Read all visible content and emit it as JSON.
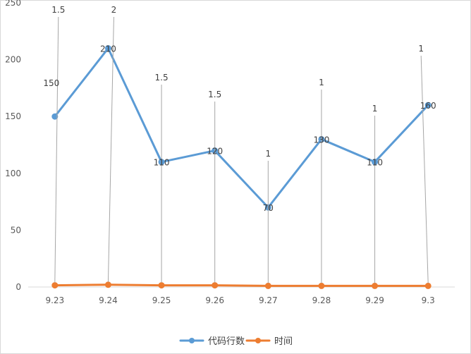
{
  "chart_data": {
    "type": "line",
    "categories": [
      "9.23",
      "9.24",
      "9.25",
      "9.26",
      "9.27",
      "9.28",
      "9.29",
      "9.3"
    ],
    "ylim": [
      0,
      250
    ],
    "yticks": [
      0,
      50,
      100,
      150,
      200,
      250
    ],
    "grid": false,
    "legend_position": "bottom",
    "series": [
      {
        "name": "代码行数",
        "values": [
          150,
          210,
          110,
          120,
          70,
          130,
          110,
          160
        ],
        "labels": [
          "150",
          "210",
          "110",
          "120",
          "70",
          "130",
          "110",
          "160"
        ],
        "color": "#5b9bd5"
      },
      {
        "name": "时间",
        "values": [
          1.5,
          2,
          1.5,
          1.5,
          1,
          1,
          1,
          1
        ],
        "labels": [
          "1.5",
          "2",
          "1.5",
          "1.5",
          "1",
          "1",
          "1",
          "1"
        ],
        "color": "#ed7d31"
      }
    ]
  }
}
